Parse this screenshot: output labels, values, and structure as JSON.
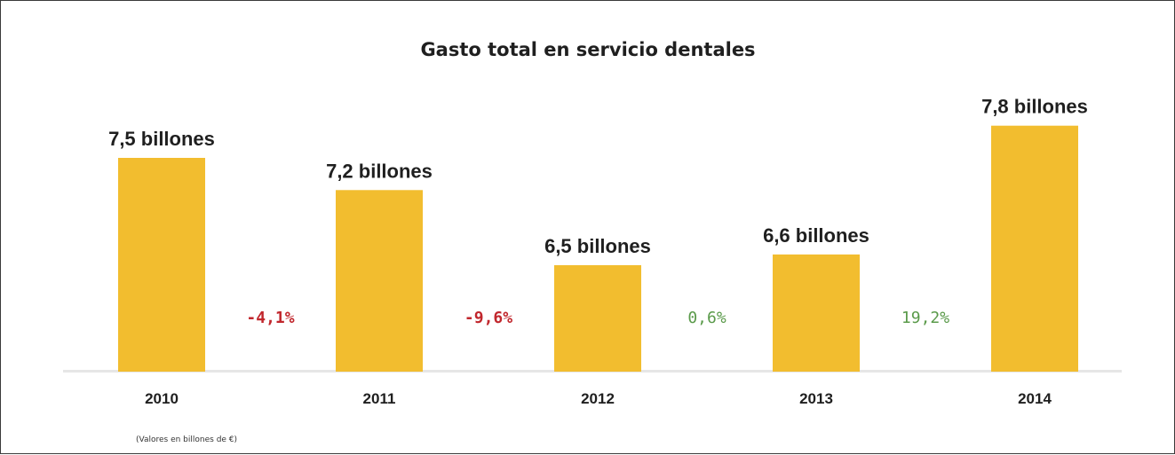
{
  "chart_data": {
    "type": "bar",
    "title": "Gasto total en servicio dentales",
    "categories": [
      "2010",
      "2011",
      "2012",
      "2013",
      "2014"
    ],
    "values": [
      7.5,
      7.2,
      6.5,
      6.6,
      7.8
    ],
    "data_labels": [
      "7,5 billones",
      "7,2 billones",
      "6,5 billones",
      "6,6 billones",
      "7,8 billones"
    ],
    "changes": [
      {
        "label": "-4,1%",
        "color": "#c1272d"
      },
      {
        "label": "-9,6%",
        "color": "#c1272d"
      },
      {
        "label": "0,6%",
        "color": "#5a9a4a"
      },
      {
        "label": "19,2%",
        "color": "#5a9a4a"
      }
    ],
    "note": "(Valores en billones de €)",
    "bar_color": "#f2bd2f",
    "grid": false,
    "legend": "none"
  }
}
